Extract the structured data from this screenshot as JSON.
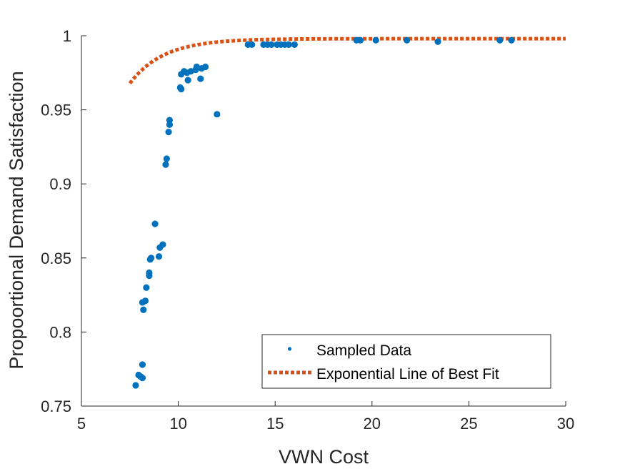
{
  "chart_data": {
    "type": "scatter",
    "title": "",
    "xlabel": "VWN Cost",
    "ylabel": "Propoortional Demand Satisfaction",
    "xlim": [
      5,
      30
    ],
    "ylim": [
      0.75,
      1.0
    ],
    "xticks": [
      "5",
      "10",
      "15",
      "20",
      "25",
      "30"
    ],
    "yticks": [
      "0.75",
      "0.8",
      "0.85",
      "0.9",
      "0.95",
      "1"
    ],
    "grid": false,
    "legend_position": "bottom-right",
    "colors": {
      "scatter": "#0072BD",
      "fit": "#D95319",
      "axis": "#262626"
    },
    "series": [
      {
        "name": "Sampled Data",
        "kind": "scatter",
        "points": [
          [
            7.8,
            0.764
          ],
          [
            7.95,
            0.771
          ],
          [
            8.05,
            0.77
          ],
          [
            8.15,
            0.778
          ],
          [
            8.15,
            0.769
          ],
          [
            8.15,
            0.82
          ],
          [
            8.2,
            0.815
          ],
          [
            8.3,
            0.821
          ],
          [
            8.35,
            0.83
          ],
          [
            8.5,
            0.838
          ],
          [
            8.5,
            0.84
          ],
          [
            8.55,
            0.849
          ],
          [
            8.6,
            0.85
          ],
          [
            8.8,
            0.873
          ],
          [
            9.0,
            0.851
          ],
          [
            9.05,
            0.857
          ],
          [
            9.2,
            0.859
          ],
          [
            9.35,
            0.913
          ],
          [
            9.4,
            0.917
          ],
          [
            9.5,
            0.935
          ],
          [
            9.55,
            0.94
          ],
          [
            9.55,
            0.943
          ],
          [
            10.1,
            0.965
          ],
          [
            10.15,
            0.964
          ],
          [
            10.15,
            0.974
          ],
          [
            10.3,
            0.976
          ],
          [
            10.45,
            0.975
          ],
          [
            10.5,
            0.97
          ],
          [
            10.65,
            0.976
          ],
          [
            10.9,
            0.977
          ],
          [
            10.95,
            0.979
          ],
          [
            11.15,
            0.971
          ],
          [
            11.2,
            0.978
          ],
          [
            11.4,
            0.979
          ],
          [
            12.0,
            0.947
          ],
          [
            13.6,
            0.994
          ],
          [
            13.8,
            0.994
          ],
          [
            14.4,
            0.994
          ],
          [
            14.6,
            0.994
          ],
          [
            14.8,
            0.994
          ],
          [
            15.1,
            0.994
          ],
          [
            15.3,
            0.994
          ],
          [
            15.5,
            0.994
          ],
          [
            15.7,
            0.994
          ],
          [
            16.0,
            0.994
          ],
          [
            19.2,
            0.997
          ],
          [
            19.4,
            0.997
          ],
          [
            20.2,
            0.997
          ],
          [
            21.8,
            0.997
          ],
          [
            23.4,
            0.996
          ],
          [
            26.6,
            0.997
          ],
          [
            27.2,
            0.997
          ]
        ]
      },
      {
        "name": "Exponential Line of Best Fit",
        "kind": "line",
        "style": "dotted",
        "model": "y = a - b*exp(-c*x)",
        "params": {
          "a": 0.998,
          "b": 2.2515,
          "c": 0.575
        },
        "x_range": [
          7.5,
          30
        ]
      }
    ]
  }
}
